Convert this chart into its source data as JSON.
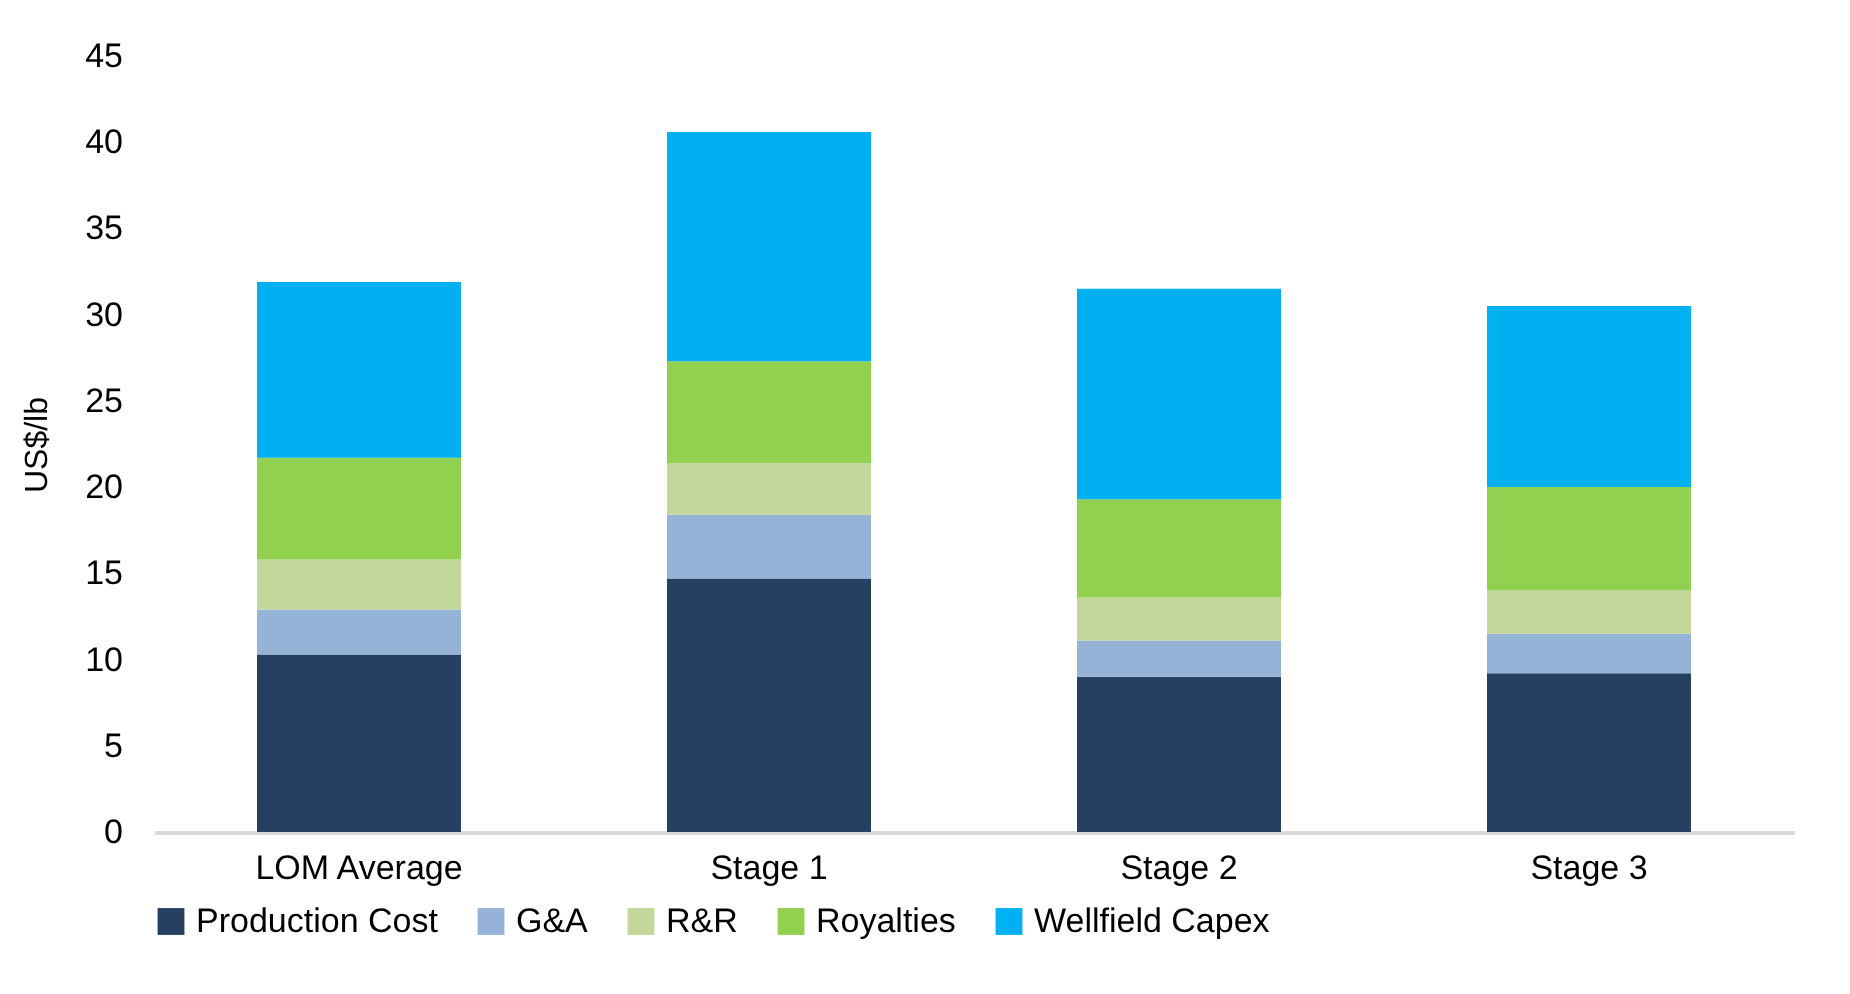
{
  "chart_data": {
    "type": "bar",
    "stacked": true,
    "ylabel": "US$/lb",
    "categories": [
      "LOM Average",
      "Stage 1",
      "Stage 2",
      "Stage 3"
    ],
    "series": [
      {
        "name": "Production Cost",
        "color": "#264061",
        "values": [
          10.3,
          14.7,
          9.0,
          9.2
        ]
      },
      {
        "name": "G&A",
        "color": "#95b3d7",
        "values": [
          2.6,
          3.7,
          2.1,
          2.3
        ]
      },
      {
        "name": "R&R",
        "color": "#c4d79b",
        "values": [
          2.9,
          3.0,
          2.5,
          2.5
        ]
      },
      {
        "name": "Royalties",
        "color": "#92d050",
        "values": [
          5.9,
          5.9,
          5.7,
          6.0
        ]
      },
      {
        "name": "Wellfield Capex",
        "color": "#00b0f0",
        "values": [
          10.2,
          13.3,
          12.2,
          10.5
        ]
      }
    ],
    "ylim": [
      0,
      45
    ],
    "yticks": [
      0,
      5,
      10,
      15,
      20,
      25,
      30,
      35,
      40,
      45
    ],
    "grid": false,
    "legend": "bottom"
  }
}
